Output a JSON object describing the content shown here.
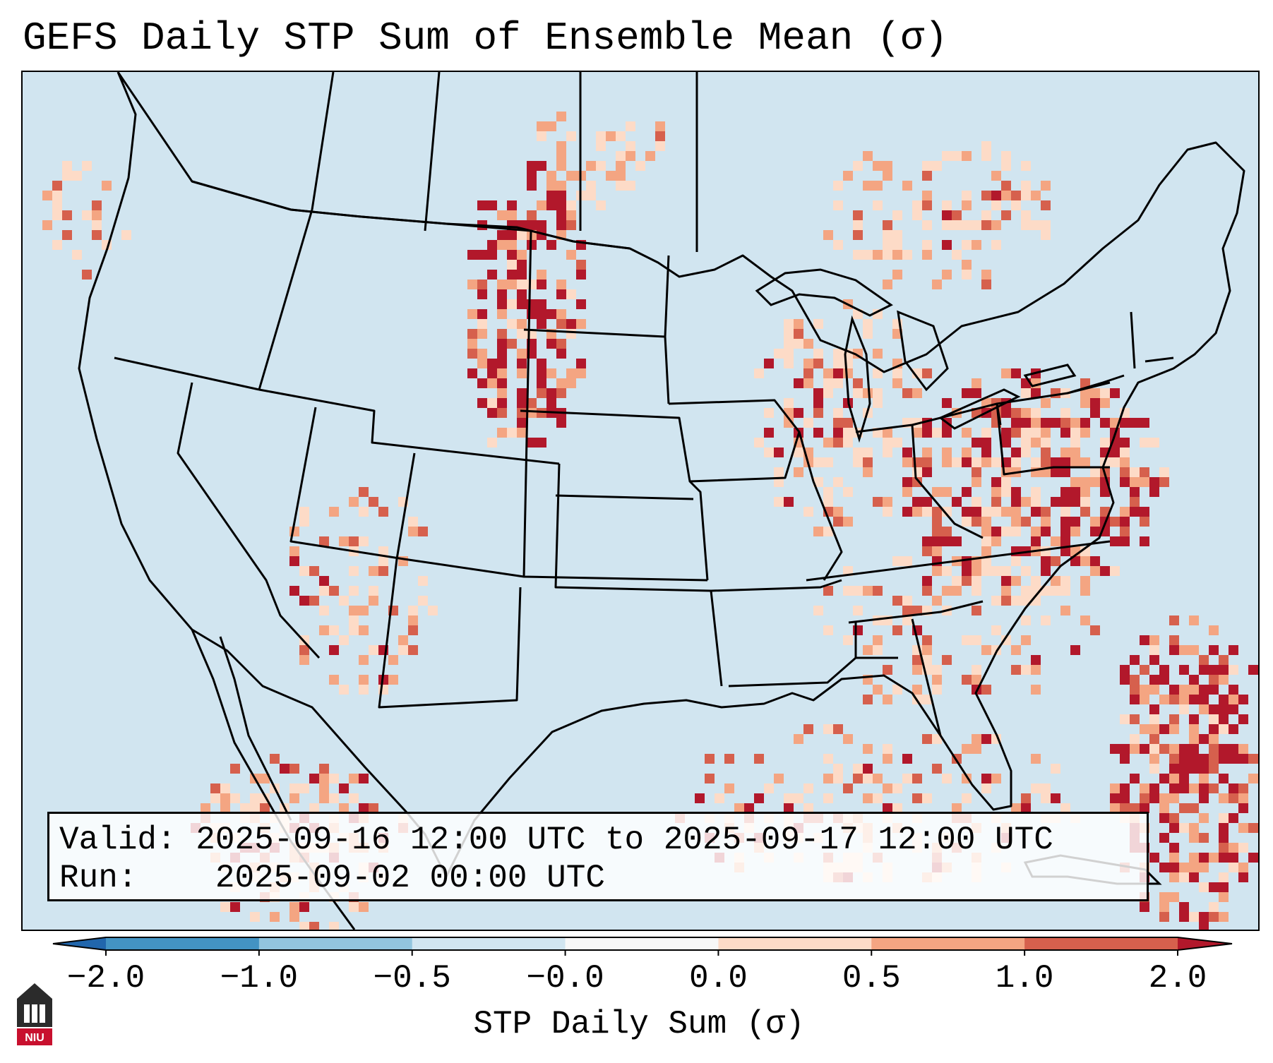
{
  "title": "GEFS Daily STP Sum of Ensemble Mean (σ)",
  "info": {
    "valid_label": "Valid:",
    "valid_value": "2025-09-16 12:00 UTC to 2025-09-17 12:00 UTC",
    "run_label": "Run:",
    "run_value": "2025-09-02 00:00 UTC"
  },
  "colorbar": {
    "label": "STP Daily Sum (σ)",
    "tick_labels": [
      "−2.0",
      "−1.0",
      "−0.5",
      "−0.0",
      "0.0",
      "0.5",
      "1.0",
      "2.0"
    ],
    "colors": [
      "#2166ac",
      "#4393c3",
      "#92c5de",
      "#d1e5f0",
      "#f7f7f7",
      "#fddbc7",
      "#f4a582",
      "#d6604d",
      "#b2182b"
    ],
    "extend": "both"
  },
  "legend_colors": {
    "ocean_background": "#d1e5f0",
    "low": "#fddbc7",
    "medium": "#f4a582",
    "high": "#d6604d",
    "very_high": "#b2182b"
  },
  "map": {
    "projection": "Lambert Conformal (CONUS)",
    "region": "Contiguous United States"
  },
  "logo": {
    "text": "NIU"
  }
}
